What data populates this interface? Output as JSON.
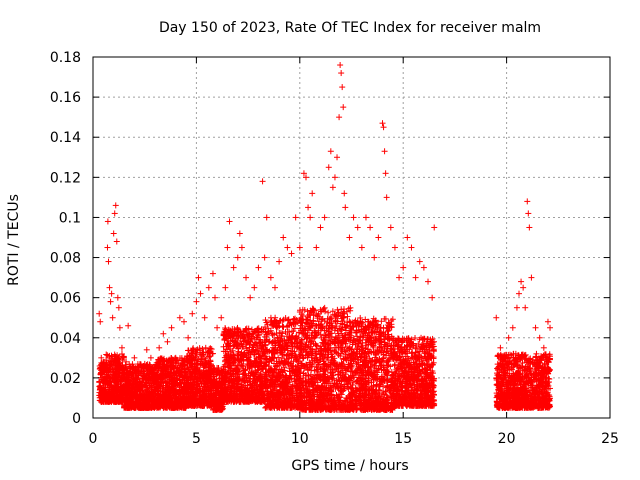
{
  "chart_data": {
    "type": "scatter",
    "title": "Day 150 of 2023, Rate Of TEC Index for receiver malm",
    "xlabel": "GPS time / hours",
    "ylabel": "ROTI / TECUs",
    "xlim": [
      0,
      25
    ],
    "ylim": [
      0,
      0.18
    ],
    "xticks": [
      0,
      5,
      10,
      15,
      20,
      25
    ],
    "yticks": [
      0,
      0.02,
      0.04,
      0.06,
      0.08,
      0.1,
      0.12,
      0.14,
      0.16,
      0.18
    ],
    "xtick_labels": [
      "0",
      "5",
      "10",
      "15",
      "20",
      "25"
    ],
    "ytick_labels": [
      "0",
      "0.02",
      "0.04",
      "0.06",
      "0.08",
      "0.1",
      "0.12",
      "0.14",
      "0.16",
      "0.18"
    ],
    "grid": true,
    "marker": "+",
    "marker_color": "#ff0000",
    "series": [
      {
        "points": [
          [
            0.3,
            0.052
          ],
          [
            0.35,
            0.048
          ],
          [
            0.4,
            0.03
          ],
          [
            0.45,
            0.022
          ],
          [
            0.5,
            0.018
          ],
          [
            0.55,
            0.025
          ],
          [
            0.6,
            0.014
          ],
          [
            0.7,
            0.085
          ],
          [
            0.72,
            0.098
          ],
          [
            0.75,
            0.078
          ],
          [
            0.8,
            0.065
          ],
          [
            0.85,
            0.058
          ],
          [
            0.9,
            0.062
          ],
          [
            0.95,
            0.05
          ],
          [
            1.0,
            0.092
          ],
          [
            1.05,
            0.102
          ],
          [
            1.1,
            0.106
          ],
          [
            1.15,
            0.088
          ],
          [
            1.2,
            0.06
          ],
          [
            1.25,
            0.055
          ],
          [
            1.3,
            0.045
          ],
          [
            1.4,
            0.035
          ],
          [
            1.5,
            0.03
          ],
          [
            1.6,
            0.028
          ],
          [
            1.7,
            0.046
          ],
          [
            1.8,
            0.025
          ],
          [
            1.9,
            0.022
          ],
          [
            2.0,
            0.03
          ],
          [
            2.2,
            0.024
          ],
          [
            2.4,
            0.02
          ],
          [
            2.6,
            0.034
          ],
          [
            2.8,
            0.03
          ],
          [
            3.0,
            0.025
          ],
          [
            3.2,
            0.035
          ],
          [
            3.4,
            0.042
          ],
          [
            3.6,
            0.038
          ],
          [
            3.8,
            0.045
          ],
          [
            4.0,
            0.03
          ],
          [
            4.2,
            0.05
          ],
          [
            4.4,
            0.048
          ],
          [
            4.6,
            0.04
          ],
          [
            4.8,
            0.052
          ],
          [
            5.0,
            0.058
          ],
          [
            5.1,
            0.07
          ],
          [
            5.2,
            0.062
          ],
          [
            5.4,
            0.05
          ],
          [
            5.6,
            0.065
          ],
          [
            5.8,
            0.072
          ],
          [
            5.9,
            0.06
          ],
          [
            6.0,
            0.045
          ],
          [
            6.2,
            0.05
          ],
          [
            6.4,
            0.065
          ],
          [
            6.5,
            0.085
          ],
          [
            6.6,
            0.098
          ],
          [
            6.8,
            0.075
          ],
          [
            7.0,
            0.08
          ],
          [
            7.1,
            0.092
          ],
          [
            7.2,
            0.085
          ],
          [
            7.4,
            0.07
          ],
          [
            7.6,
            0.06
          ],
          [
            7.8,
            0.065
          ],
          [
            8.0,
            0.075
          ],
          [
            8.2,
            0.118
          ],
          [
            8.3,
            0.08
          ],
          [
            8.4,
            0.1
          ],
          [
            8.6,
            0.07
          ],
          [
            8.8,
            0.065
          ],
          [
            9.0,
            0.078
          ],
          [
            9.2,
            0.09
          ],
          [
            9.4,
            0.085
          ],
          [
            9.6,
            0.082
          ],
          [
            9.8,
            0.1
          ],
          [
            10.0,
            0.085
          ],
          [
            10.2,
            0.122
          ],
          [
            10.3,
            0.12
          ],
          [
            10.4,
            0.105
          ],
          [
            10.5,
            0.1
          ],
          [
            10.6,
            0.112
          ],
          [
            10.8,
            0.085
          ],
          [
            11.0,
            0.095
          ],
          [
            11.2,
            0.1
          ],
          [
            11.4,
            0.125
          ],
          [
            11.5,
            0.133
          ],
          [
            11.6,
            0.115
          ],
          [
            11.7,
            0.12
          ],
          [
            11.8,
            0.13
          ],
          [
            11.9,
            0.15
          ],
          [
            11.95,
            0.176
          ],
          [
            12.0,
            0.172
          ],
          [
            12.05,
            0.165
          ],
          [
            12.1,
            0.155
          ],
          [
            12.15,
            0.112
          ],
          [
            12.2,
            0.105
          ],
          [
            12.4,
            0.09
          ],
          [
            12.6,
            0.1
          ],
          [
            12.8,
            0.095
          ],
          [
            13.0,
            0.085
          ],
          [
            13.2,
            0.1
          ],
          [
            13.4,
            0.095
          ],
          [
            13.6,
            0.08
          ],
          [
            13.8,
            0.09
          ],
          [
            14.0,
            0.147
          ],
          [
            14.05,
            0.145
          ],
          [
            14.1,
            0.133
          ],
          [
            14.15,
            0.122
          ],
          [
            14.2,
            0.11
          ],
          [
            14.4,
            0.095
          ],
          [
            14.6,
            0.085
          ],
          [
            14.8,
            0.07
          ],
          [
            15.0,
            0.075
          ],
          [
            15.2,
            0.09
          ],
          [
            15.4,
            0.085
          ],
          [
            15.6,
            0.07
          ],
          [
            15.8,
            0.078
          ],
          [
            16.0,
            0.075
          ],
          [
            16.2,
            0.068
          ],
          [
            16.4,
            0.06
          ],
          [
            16.5,
            0.095
          ],
          [
            19.5,
            0.05
          ],
          [
            19.7,
            0.035
          ],
          [
            19.9,
            0.03
          ],
          [
            20.1,
            0.04
          ],
          [
            20.3,
            0.045
          ],
          [
            20.5,
            0.055
          ],
          [
            20.6,
            0.062
          ],
          [
            20.7,
            0.068
          ],
          [
            20.8,
            0.065
          ],
          [
            20.9,
            0.055
          ],
          [
            21.0,
            0.108
          ],
          [
            21.05,
            0.102
          ],
          [
            21.1,
            0.095
          ],
          [
            21.2,
            0.07
          ],
          [
            21.4,
            0.045
          ],
          [
            21.6,
            0.04
          ],
          [
            21.8,
            0.035
          ],
          [
            22.0,
            0.048
          ],
          [
            22.1,
            0.045
          ]
        ]
      }
    ],
    "bulk_band": [
      [
        0.3,
        0.6,
        0.008,
        0.028
      ],
      [
        0.6,
        1.5,
        0.008,
        0.032
      ],
      [
        1.5,
        3.0,
        0.005,
        0.027
      ],
      [
        3.0,
        4.5,
        0.005,
        0.03
      ],
      [
        4.5,
        5.8,
        0.006,
        0.035
      ],
      [
        5.8,
        6.3,
        0.004,
        0.025
      ],
      [
        6.3,
        8.3,
        0.008,
        0.045
      ],
      [
        8.3,
        10.0,
        0.005,
        0.05
      ],
      [
        10.0,
        12.5,
        0.004,
        0.055
      ],
      [
        12.5,
        14.5,
        0.004,
        0.05
      ],
      [
        14.5,
        16.5,
        0.006,
        0.04
      ],
      [
        19.5,
        22.1,
        0.005,
        0.032
      ]
    ]
  }
}
